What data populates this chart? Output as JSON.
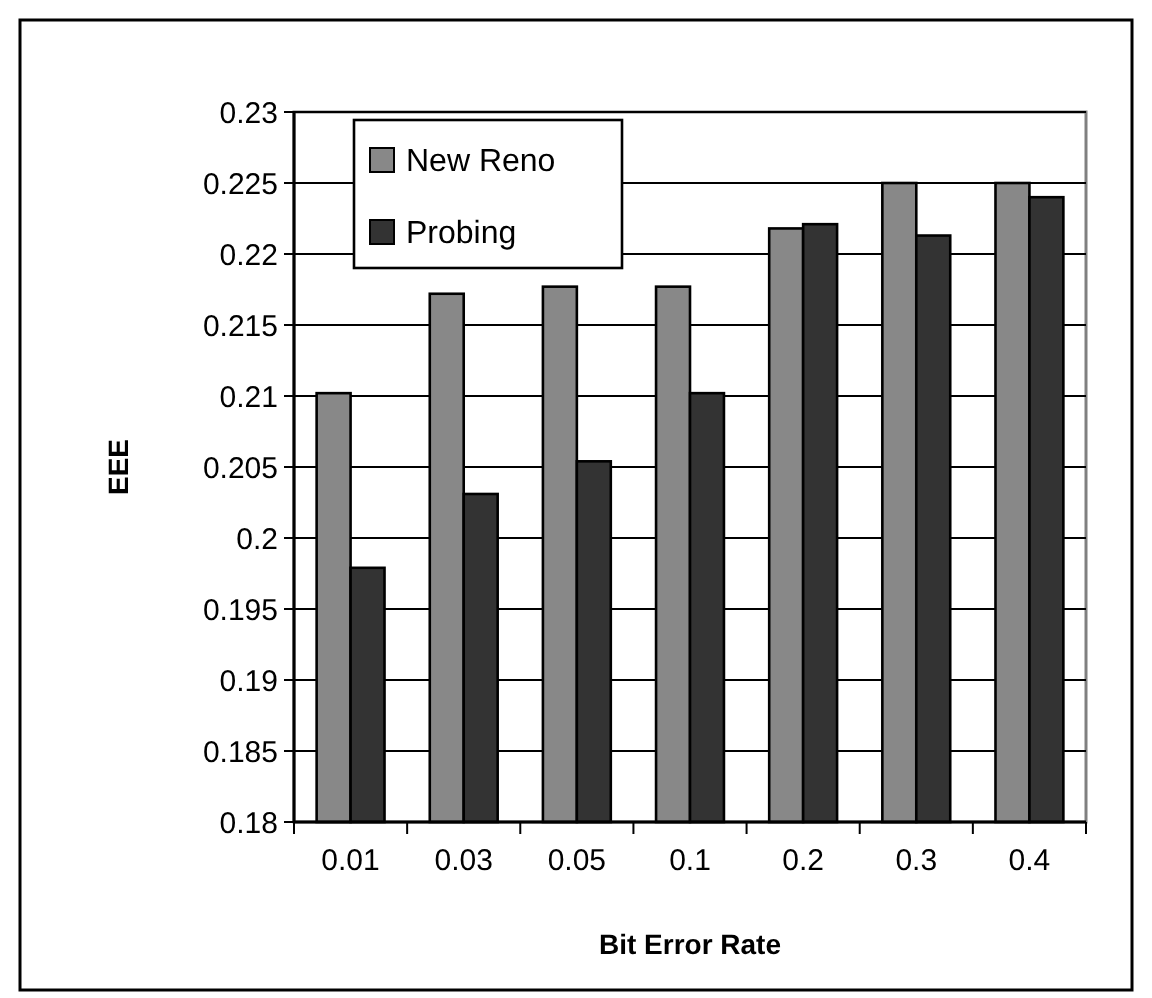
{
  "chart_data": {
    "type": "bar",
    "xlabel": "Bit Error Rate",
    "ylabel": "EEE",
    "categories": [
      "0.01",
      "0.03",
      "0.05",
      "0.1",
      "0.2",
      "0.3",
      "0.4"
    ],
    "series": [
      {
        "name": "New Reno",
        "color": "#888888",
        "values": [
          0.2102,
          0.2172,
          0.2177,
          0.2177,
          0.2218,
          0.225,
          0.225
        ]
      },
      {
        "name": "Probing",
        "color": "#333333",
        "values": [
          0.1979,
          0.2031,
          0.2054,
          0.2102,
          0.2221,
          0.2213,
          0.224
        ]
      }
    ],
    "ylim": [
      0.18,
      0.23
    ],
    "yticks": [
      0.18,
      0.185,
      0.19,
      0.195,
      0.2,
      0.205,
      0.21,
      0.215,
      0.22,
      0.225,
      0.23
    ],
    "grid": "y",
    "legend": "top left"
  }
}
